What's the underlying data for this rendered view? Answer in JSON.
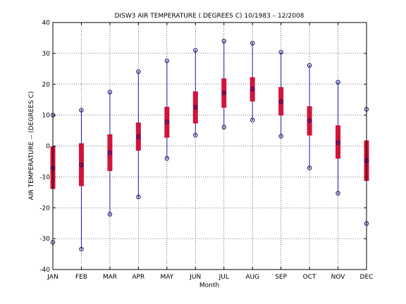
{
  "chart_data": {
    "type": "box",
    "title": "DISW3  AIR TEMPERATURE ( DEGREES C) 10/1983 – 12/2008",
    "xlabel": "Month",
    "ylabel": "AIR TEMPERATURE -- (DEGREES C)",
    "ylim": [
      -40,
      40
    ],
    "yticks": [
      "-40",
      "-30",
      "-20",
      "-10",
      "0",
      "10",
      "20",
      "30",
      "40"
    ],
    "ytick_values": [
      -40,
      -30,
      -20,
      -10,
      0,
      10,
      20,
      30,
      40
    ],
    "grid": true,
    "categories": [
      "JAN",
      "FEB",
      "MAR",
      "APR",
      "MAY",
      "JUN",
      "JUL",
      "AUG",
      "SEP",
      "OCT",
      "NOV",
      "DEC"
    ],
    "min": [
      -31.2,
      -33.4,
      -22.1,
      -16.5,
      -4.0,
      3.5,
      6.1,
      8.4,
      3.2,
      -7.1,
      -15.3,
      -25.1
    ],
    "q1": [
      -13.9,
      -13.0,
      -8.1,
      -1.5,
      2.7,
      7.3,
      12.4,
      14.4,
      9.9,
      3.4,
      -4.1,
      -11.3
    ],
    "median": [
      -7.1,
      -6.1,
      -2.2,
      3.0,
      7.8,
      12.6,
      17.2,
      18.5,
      14.4,
      8.2,
      1.1,
      -4.7
    ],
    "q3": [
      -0.1,
      0.9,
      3.8,
      7.6,
      12.7,
      17.7,
      21.9,
      22.3,
      19.1,
      12.9,
      6.7,
      1.8
    ],
    "max": [
      10.0,
      11.6,
      17.5,
      24.1,
      27.6,
      31.0,
      34.0,
      33.3,
      30.4,
      26.1,
      20.7,
      11.9
    ],
    "colors": {
      "box": "#d2143a",
      "whisker": "#1b1bb4",
      "marker": "#0a0a6e",
      "grid": "#000000"
    }
  }
}
